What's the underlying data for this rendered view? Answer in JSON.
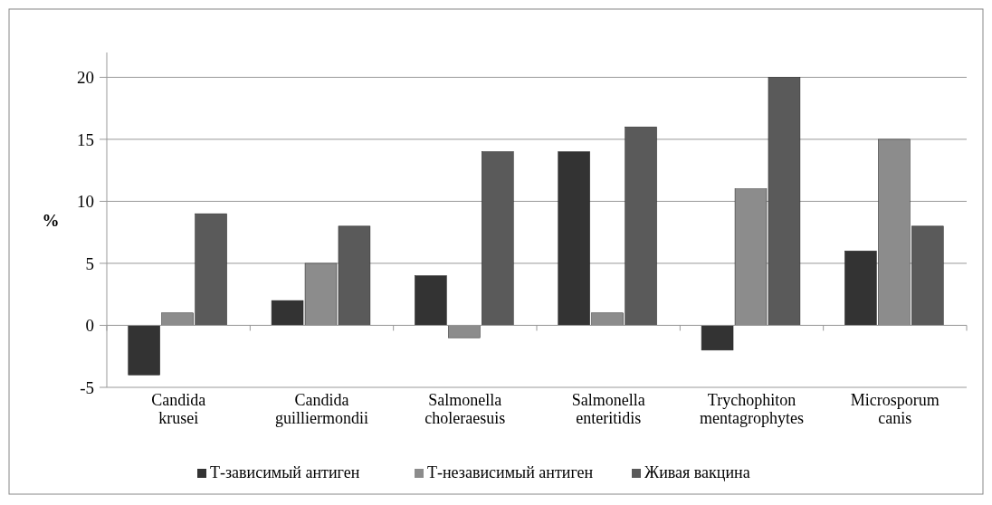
{
  "chart_data": {
    "type": "bar",
    "ylabel": "%",
    "categories": [
      "Candida krusei",
      "Candida guilliermondii",
      "Salmonella choleraesuis",
      "Salmonella enteritidis",
      "Trychophiton mentagrophytes",
      "Microsporum canis"
    ],
    "series": [
      {
        "name": "Т-зависимый антиген",
        "color": "#333333",
        "values": [
          -4,
          2,
          4,
          14,
          -2,
          6
        ]
      },
      {
        "name": "Т-независимый антиген",
        "color": "#8c8c8c",
        "values": [
          1,
          5,
          -1,
          1,
          11,
          15
        ]
      },
      {
        "name": "Живая вакцина",
        "color": "#5a5a5a",
        "values": [
          9,
          8,
          14,
          16,
          20,
          8
        ]
      }
    ],
    "ylim": [
      -5,
      22
    ],
    "yticks": [
      -5,
      0,
      5,
      10,
      15,
      20
    ],
    "grid": "y",
    "legend": "bottom"
  }
}
